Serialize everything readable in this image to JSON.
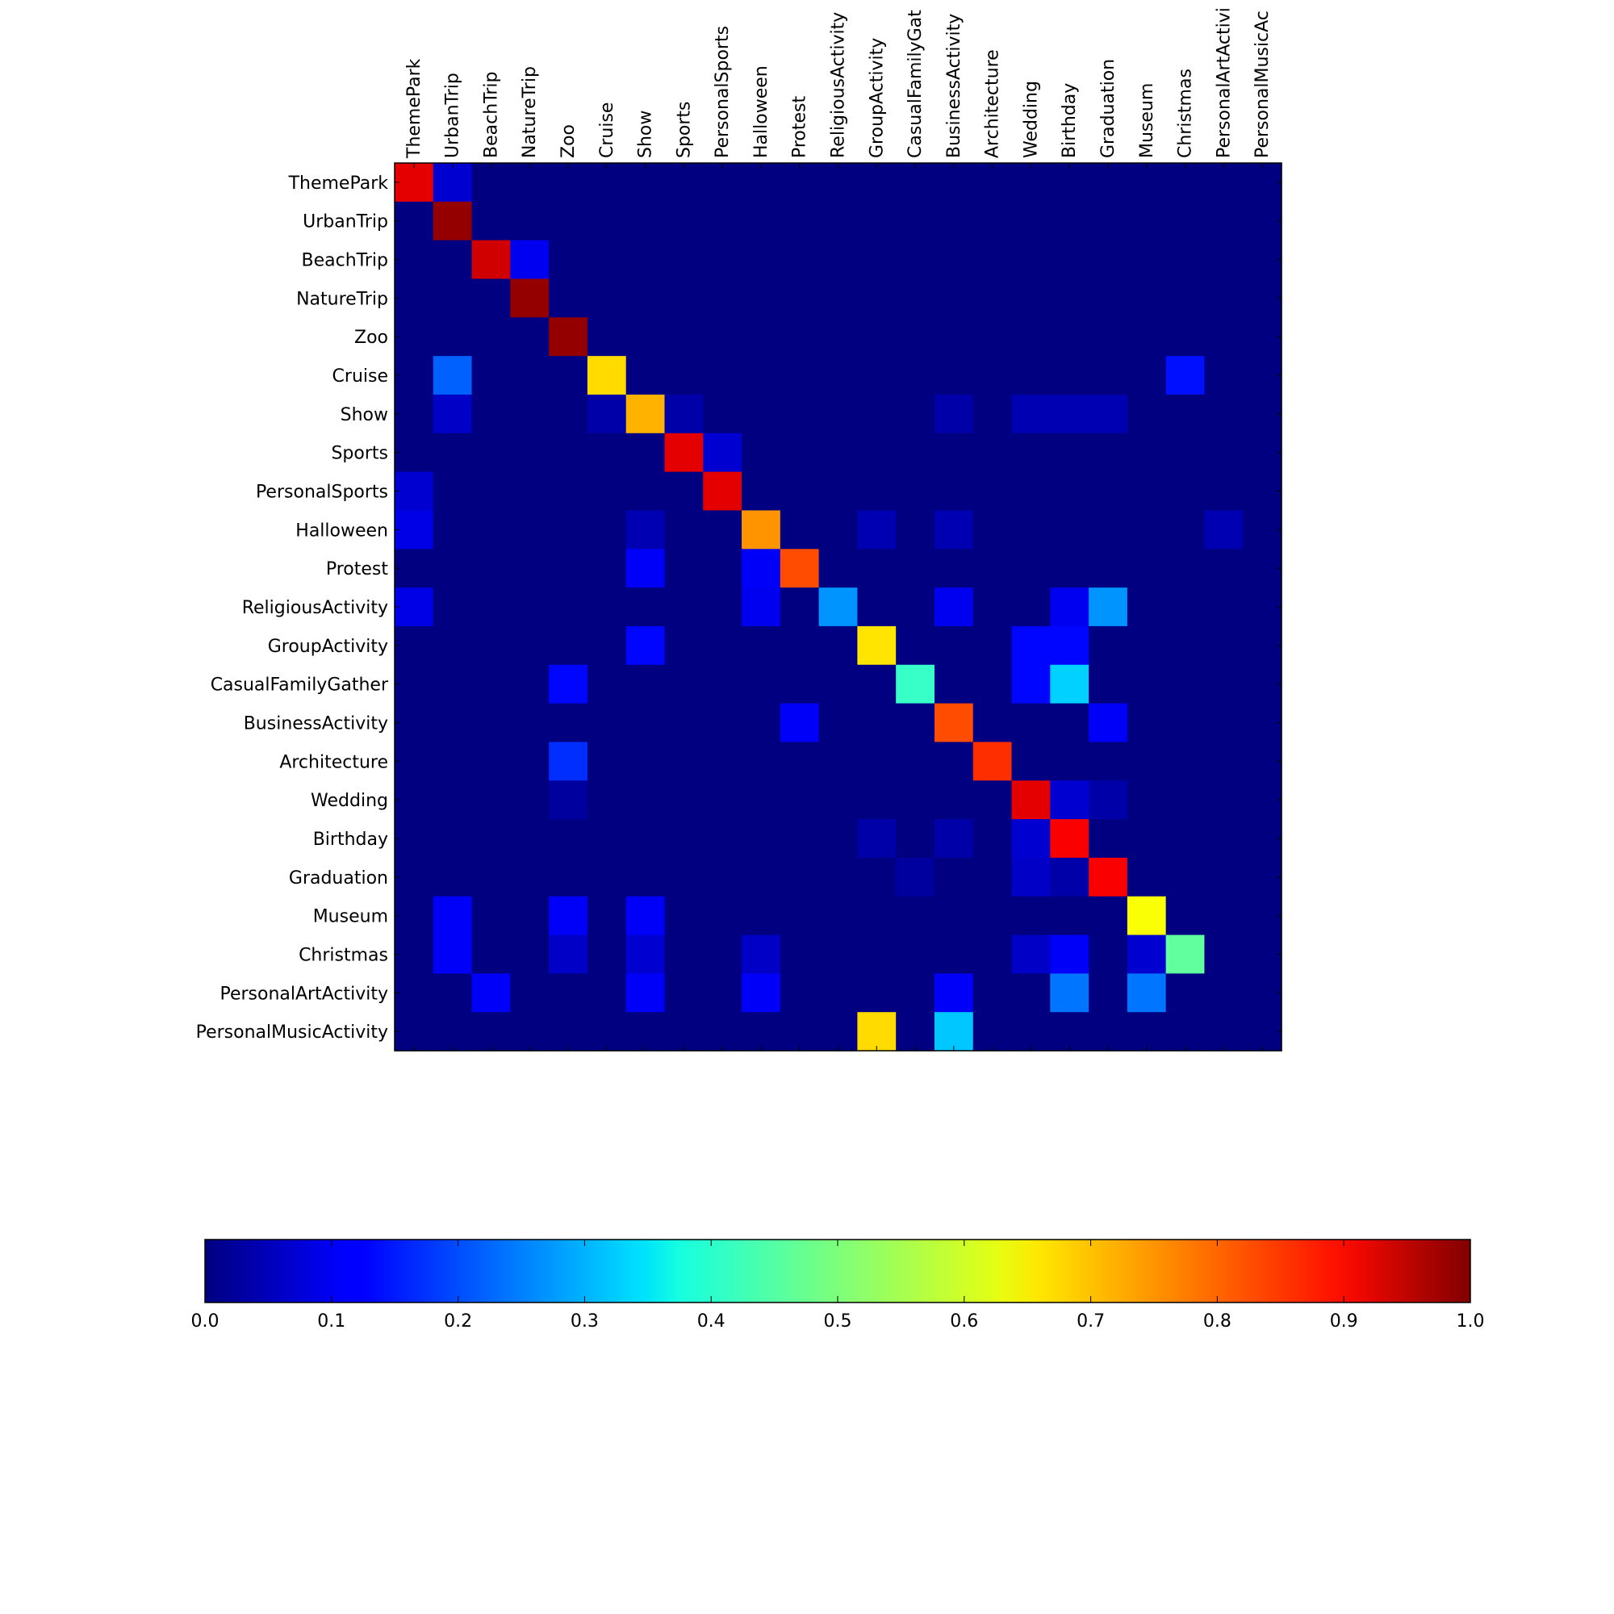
{
  "chart_data": {
    "type": "heatmap",
    "title": "",
    "xlabel": "",
    "ylabel": "",
    "colormap": "jet",
    "colorbar": {
      "orientation": "horizontal",
      "range": [
        0,
        1
      ],
      "ticks": [
        "0.0",
        "0.1",
        "0.2",
        "0.3",
        "0.4",
        "0.5",
        "0.6",
        "0.7",
        "0.8",
        "0.9",
        "1.0"
      ]
    },
    "x_tick_labels": [
      "ThemePark",
      "UrbanTrip",
      "BeachTrip",
      "NatureTrip",
      "Zoo",
      "Cruise",
      "Show",
      "Sports",
      "PersonalSports",
      "Halloween",
      "Protest",
      "ReligiousActivity",
      "GroupActivity",
      "CasualFamilyGat",
      "BusinessActivity",
      "Architecture",
      "Wedding",
      "Birthday",
      "Graduation",
      "Museum",
      "Christmas",
      "PersonalArtActivi",
      "PersonalMusicAc"
    ],
    "y_tick_labels": [
      "ThemePark",
      "UrbanTrip",
      "BeachTrip",
      "NatureTrip",
      "Zoo",
      "Cruise",
      "Show",
      "Sports",
      "PersonalSports",
      "Halloween",
      "Protest",
      "ReligiousActivity",
      "GroupActivity",
      "CasualFamilyGather",
      "BusinessActivity",
      "Architecture",
      "Wedding",
      "Birthday",
      "Graduation",
      "Museum",
      "Christmas",
      "PersonalArtActivity",
      "PersonalMusicActivity"
    ],
    "matrix": [
      [
        0.9,
        0.08,
        0,
        0,
        0,
        0,
        0,
        0,
        0,
        0,
        0,
        0,
        0,
        0,
        0,
        0,
        0,
        0,
        0,
        0,
        0,
        0,
        0
      ],
      [
        0,
        0.98,
        0,
        0,
        0,
        0,
        0,
        0,
        0,
        0,
        0,
        0,
        0,
        0,
        0,
        0,
        0,
        0,
        0,
        0,
        0,
        0,
        0
      ],
      [
        0,
        0,
        0.92,
        0.11,
        0,
        0,
        0,
        0,
        0,
        0,
        0,
        0,
        0,
        0,
        0,
        0,
        0,
        0,
        0,
        0,
        0,
        0,
        0
      ],
      [
        0,
        0,
        0,
        0.98,
        0,
        0,
        0,
        0,
        0,
        0,
        0,
        0,
        0,
        0,
        0,
        0,
        0,
        0,
        0,
        0,
        0,
        0,
        0
      ],
      [
        0,
        0,
        0,
        0,
        0.98,
        0,
        0,
        0,
        0,
        0,
        0,
        0,
        0,
        0,
        0,
        0,
        0,
        0,
        0,
        0,
        0,
        0,
        0
      ],
      [
        0,
        0.22,
        0,
        0,
        0,
        0.66,
        0,
        0,
        0,
        0,
        0,
        0,
        0,
        0,
        0,
        0,
        0,
        0,
        0,
        0,
        0.14,
        0,
        0
      ],
      [
        0,
        0.07,
        0,
        0,
        0,
        0.04,
        0.7,
        0.04,
        0,
        0,
        0,
        0,
        0,
        0,
        0.04,
        0,
        0.05,
        0.05,
        0.05,
        0,
        0,
        0,
        0
      ],
      [
        0,
        0,
        0,
        0,
        0,
        0,
        0,
        0.9,
        0.08,
        0,
        0,
        0,
        0,
        0,
        0,
        0,
        0,
        0,
        0,
        0,
        0,
        0,
        0
      ],
      [
        0.08,
        0,
        0,
        0,
        0,
        0,
        0,
        0,
        0.9,
        0,
        0,
        0,
        0,
        0,
        0,
        0,
        0,
        0,
        0,
        0,
        0,
        0,
        0
      ],
      [
        0.1,
        0,
        0,
        0,
        0,
        0,
        0.05,
        0,
        0,
        0.73,
        0,
        0,
        0.05,
        0,
        0.05,
        0,
        0,
        0,
        0,
        0,
        0,
        0.05,
        0
      ],
      [
        0,
        0,
        0,
        0,
        0,
        0,
        0.12,
        0,
        0,
        0.12,
        0.8,
        0,
        0,
        0,
        0,
        0,
        0,
        0,
        0,
        0,
        0,
        0,
        0
      ],
      [
        0.1,
        0,
        0,
        0,
        0,
        0,
        0,
        0,
        0,
        0.11,
        0,
        0.27,
        0,
        0,
        0.11,
        0,
        0,
        0.11,
        0.27,
        0,
        0,
        0,
        0
      ],
      [
        0,
        0,
        0,
        0,
        0,
        0,
        0.13,
        0,
        0,
        0,
        0,
        0,
        0.65,
        0,
        0,
        0,
        0.13,
        0.13,
        0,
        0,
        0,
        0,
        0
      ],
      [
        0,
        0,
        0,
        0,
        0.13,
        0,
        0,
        0,
        0,
        0,
        0,
        0,
        0,
        0.43,
        0,
        0,
        0.13,
        0.33,
        0,
        0,
        0,
        0,
        0
      ],
      [
        0,
        0,
        0,
        0,
        0,
        0,
        0,
        0,
        0,
        0,
        0.12,
        0,
        0,
        0,
        0.8,
        0,
        0,
        0,
        0.12,
        0,
        0,
        0,
        0
      ],
      [
        0,
        0,
        0,
        0,
        0.17,
        0,
        0,
        0,
        0,
        0,
        0,
        0,
        0,
        0,
        0,
        0.83,
        0,
        0,
        0,
        0,
        0,
        0,
        0
      ],
      [
        0,
        0,
        0,
        0,
        0.03,
        0,
        0,
        0,
        0,
        0,
        0,
        0,
        0,
        0,
        0,
        0,
        0.9,
        0.08,
        0.04,
        0,
        0,
        0,
        0
      ],
      [
        0,
        0,
        0,
        0,
        0,
        0,
        0,
        0,
        0,
        0,
        0,
        0,
        0.04,
        0,
        0.04,
        0,
        0.08,
        0.88,
        0,
        0,
        0,
        0,
        0
      ],
      [
        0,
        0,
        0,
        0,
        0,
        0,
        0,
        0,
        0,
        0,
        0,
        0,
        0,
        0.03,
        0,
        0,
        0.07,
        0.04,
        0.88,
        0,
        0,
        0,
        0
      ],
      [
        0,
        0.12,
        0,
        0,
        0.12,
        0,
        0.12,
        0,
        0,
        0,
        0,
        0,
        0,
        0,
        0,
        0,
        0,
        0,
        0,
        0.62,
        0,
        0,
        0
      ],
      [
        0,
        0.12,
        0,
        0,
        0.07,
        0,
        0.08,
        0,
        0,
        0.07,
        0,
        0,
        0,
        0,
        0,
        0,
        0.07,
        0.12,
        0,
        0.08,
        0.47,
        0,
        0
      ],
      [
        0,
        0,
        0.12,
        0,
        0,
        0,
        0.12,
        0,
        0,
        0.12,
        0,
        0,
        0,
        0,
        0.12,
        0,
        0,
        0.24,
        0,
        0.24,
        0,
        0,
        0
      ],
      [
        0,
        0,
        0,
        0,
        0,
        0,
        0,
        0,
        0,
        0,
        0,
        0,
        0.66,
        0,
        0.32,
        0,
        0,
        0,
        0,
        0,
        0,
        0,
        0
      ]
    ]
  }
}
